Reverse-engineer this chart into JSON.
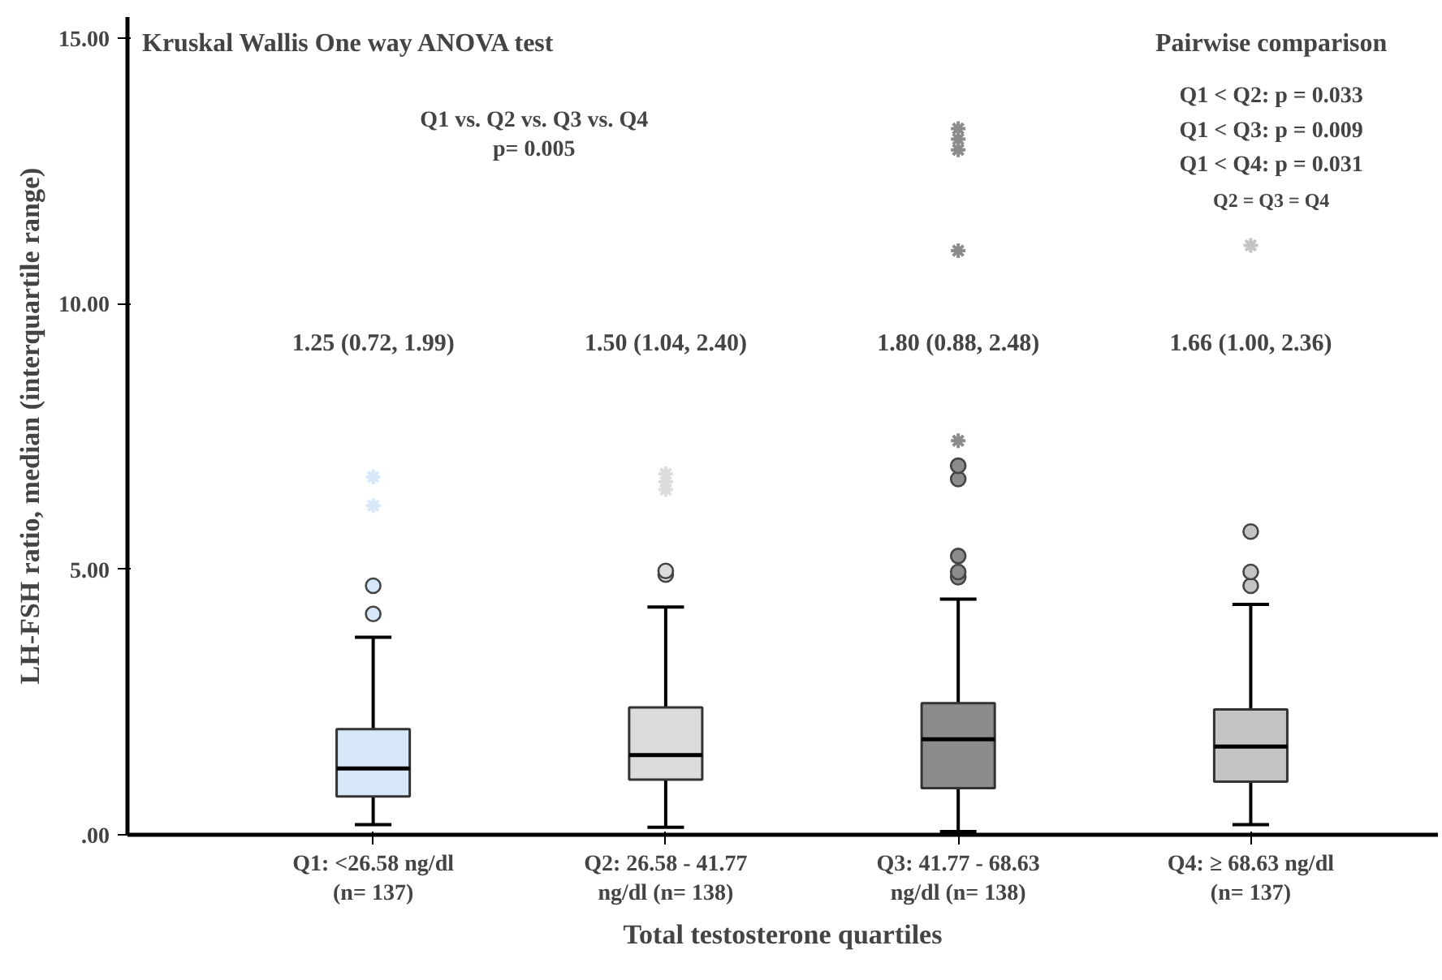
{
  "chart_data": {
    "type": "box",
    "categories": [
      "Q1: <26.58 ng/dl\n(n= 137)",
      "Q2: 26.58 - 41.77\nng/dl (n= 138)",
      "Q3: 41.77 - 68.63\nng/dl (n= 138)",
      "Q4: ≥ 68.63 ng/dl\n(n= 137)"
    ],
    "colors": [
      "#d6e8f7",
      "#dcdcdc",
      "#8c8c8c",
      "#c4c4c4"
    ],
    "boxes": [
      {
        "low": 0.19,
        "q1": 0.72,
        "median": 1.25,
        "q3": 1.99,
        "high": 3.72,
        "outliers": [
          4.16,
          4.69,
          6.2,
          6.74
        ]
      },
      {
        "low": 0.14,
        "q1": 1.04,
        "median": 1.5,
        "q3": 2.4,
        "high": 4.29,
        "outliers": [
          4.9,
          4.97,
          6.5,
          6.65,
          6.8
        ]
      },
      {
        "low": 0.06,
        "q1": 0.88,
        "median": 1.8,
        "q3": 2.48,
        "high": 4.44,
        "outliers": [
          4.85,
          4.95,
          5.25,
          6.7,
          6.95,
          7.42,
          11.0,
          12.9,
          13.1,
          13.3
        ]
      },
      {
        "low": 0.19,
        "q1": 1.0,
        "median": 1.66,
        "q3": 2.36,
        "high": 4.34,
        "outliers": [
          4.69,
          4.95,
          5.71,
          11.1
        ]
      }
    ],
    "value_labels": [
      "1.25 (0.72, 1.99)",
      "1.50 (1.04, 2.40)",
      "1.80 (0.88, 2.48)",
      "1.66 (1.00, 2.36)"
    ],
    "xlabel": "Total testosterone quartiles",
    "ylabel": "LH-FSH ratio, median (interquartile range)",
    "ylim": [
      0,
      15.4
    ],
    "yticks": [
      {
        "value": 0,
        "label": ".00"
      },
      {
        "value": 5,
        "label": "5.00"
      },
      {
        "value": 10,
        "label": "10.00"
      },
      {
        "value": 15,
        "label": "15.00"
      }
    ],
    "grid": false,
    "annotations": [
      "Kruskal Wallis One way ANOVA test",
      "Q1 vs. Q2 vs. Q3 vs. Q4",
      "p= 0.005",
      "Pairwise comparison",
      "Q1 < Q2: p = 0.033",
      "Q1 < Q3: p = 0.009",
      "Q1 < Q4: p = 0.031",
      "Q2 = Q3 = Q4"
    ]
  }
}
